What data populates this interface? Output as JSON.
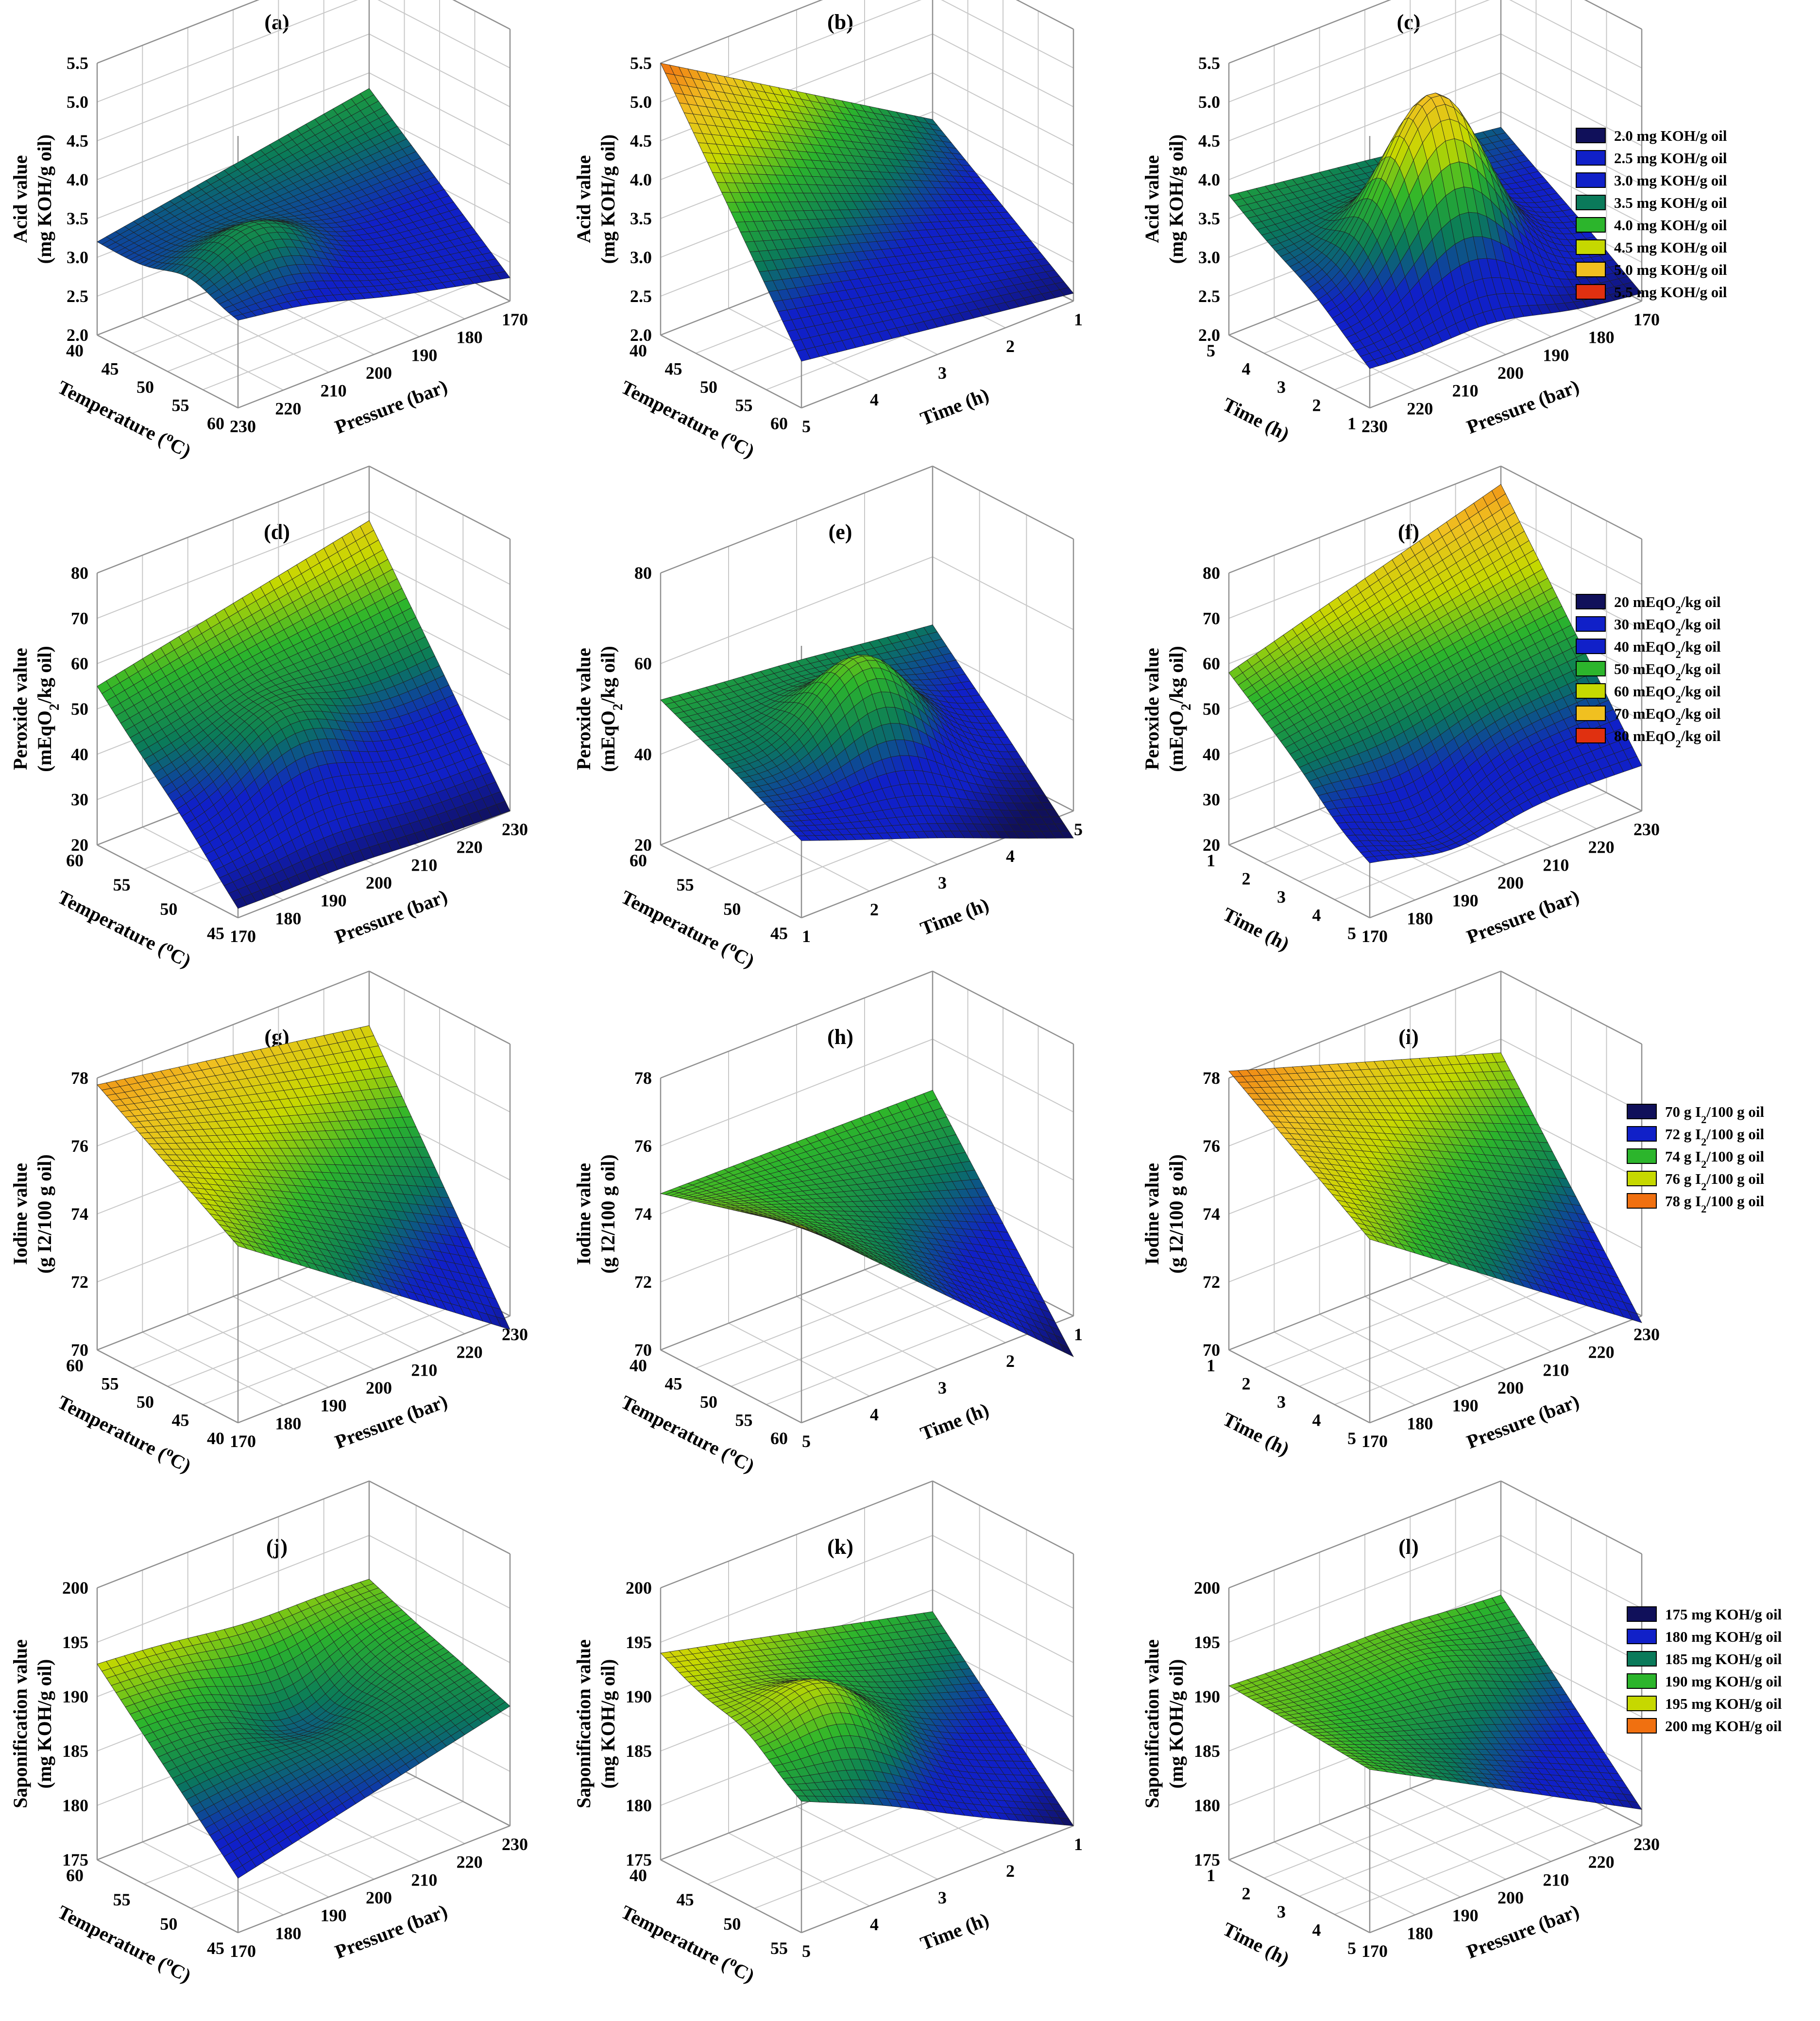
{
  "figure": {
    "colors": {
      "c1": "#10105a",
      "c2": "#1020c8",
      "c3": "#0a7a5a",
      "c4": "#2cb52c",
      "c5": "#c6d800",
      "c6": "#f0c020",
      "c7": "#f07010",
      "c8": "#e03010",
      "line": "#202020",
      "grid": "#c8c8c8",
      "box": "#909090"
    },
    "legends": [
      {
        "id": "acid",
        "items": [
          {
            "text": "2.0 mg KOH/g oil",
            "color": "c1"
          },
          {
            "text": "2.5 mg KOH/g oil",
            "color": "c2"
          },
          {
            "text": "3.0 mg KOH/g oil",
            "color": "c2"
          },
          {
            "text": "3.5 mg KOH/g oil",
            "color": "c3"
          },
          {
            "text": "4.0 mg KOH/g oil",
            "color": "c4"
          },
          {
            "text": "4.5 mg KOH/g oil",
            "color": "c5"
          },
          {
            "text": "5.0 mg KOH/g oil",
            "color": "c6"
          },
          {
            "text": "5.5 mg KOH/g oil",
            "color": "c8"
          }
        ]
      },
      {
        "id": "peroxide",
        "items": [
          {
            "text": "20 mEqO",
            "sub": "2",
            "tail": "/kg oil",
            "color": "c1"
          },
          {
            "text": "30 mEqO",
            "sub": "2",
            "tail": "/kg oil",
            "color": "c2"
          },
          {
            "text": "40 mEqO",
            "sub": "2",
            "tail": "/kg oil",
            "color": "c2"
          },
          {
            "text": "50 mEqO",
            "sub": "2",
            "tail": "/kg oil",
            "color": "c4"
          },
          {
            "text": "60 mEqO",
            "sub": "2",
            "tail": "/kg oil",
            "color": "c5"
          },
          {
            "text": "70 mEqO",
            "sub": "2",
            "tail": "/kg oil",
            "color": "c6"
          },
          {
            "text": "80 mEqO",
            "sub": "2",
            "tail": "/kg oil",
            "color": "c8"
          }
        ]
      },
      {
        "id": "iodine",
        "items": [
          {
            "text": "70 g I",
            "sub": "2",
            "tail": "/100 g oil",
            "color": "c1"
          },
          {
            "text": "72 g I",
            "sub": "2",
            "tail": "/100 g oil",
            "color": "c2"
          },
          {
            "text": "74 g I",
            "sub": "2",
            "tail": "/100 g oil",
            "color": "c4"
          },
          {
            "text": "76 g I",
            "sub": "2",
            "tail": "/100 g oil",
            "color": "c5"
          },
          {
            "text": "78 g I",
            "sub": "2",
            "tail": "/100 g oil",
            "color": "c7"
          }
        ]
      },
      {
        "id": "sap",
        "items": [
          {
            "text": "175 mg KOH/g oil",
            "color": "c1"
          },
          {
            "text": "180 mg KOH/g oil",
            "color": "c2"
          },
          {
            "text": "185 mg KOH/g oil",
            "color": "c3"
          },
          {
            "text": "190 mg KOH/g oil",
            "color": "c4"
          },
          {
            "text": "195 mg KOH/g oil",
            "color": "c5"
          },
          {
            "text": "200 mg KOH/g oil",
            "color": "c7"
          }
        ]
      }
    ]
  },
  "chart_data": [
    {
      "panel": "(a)",
      "type": "surface3d",
      "response": "acid",
      "zlabel": [
        "Acid value",
        "(mg KOH/g oil)"
      ],
      "zticks": [
        "2.0",
        "2.5",
        "3.0",
        "3.5",
        "4.0",
        "4.5",
        "5.0",
        "5.5"
      ],
      "ylabel": "Temperature (°C)",
      "yticks": [
        "60",
        "55",
        "50",
        "45",
        "40"
      ],
      "xlabel": "Pressure (bar)",
      "xticks": [
        "230",
        "220",
        "210",
        "200",
        "190",
        "180",
        "170"
      ],
      "surface": {
        "c00": 3.1,
        "c10": 2.3,
        "c01": 3.2,
        "c11": 3.8,
        "bulge": 0.6,
        "bx": 0.25,
        "by": 0.35
      }
    },
    {
      "panel": "(b)",
      "type": "surface3d",
      "response": "acid",
      "zlabel": [
        "Acid value",
        "(mg KOH/g oil)"
      ],
      "zticks": [
        "2.0",
        "2.5",
        "3.0",
        "3.5",
        "4.0",
        "4.5",
        "5.0",
        "5.5"
      ],
      "ylabel": "Temperature (°C)",
      "yticks": [
        "60",
        "55",
        "50",
        "45",
        "40"
      ],
      "xlabel": "Time (h)",
      "xticks": [
        "5",
        "4",
        "3",
        "2",
        "1"
      ],
      "surface": {
        "c00": 2.6,
        "c10": 2.1,
        "c01": 5.5,
        "c11": 3.4,
        "bulge": 0.0,
        "bx": 0.5,
        "by": 0.5
      }
    },
    {
      "panel": "(c)",
      "type": "surface3d",
      "response": "acid",
      "zlabel": [
        "Acid value",
        "(mg KOH/g oil)"
      ],
      "zticks": [
        "2.0",
        "2.5",
        "3.0",
        "3.5",
        "4.0",
        "4.5",
        "5.0",
        "5.5"
      ],
      "ylabel": "Time (h)",
      "yticks": [
        "1",
        "2",
        "3",
        "4",
        "5"
      ],
      "xlabel": "Pressure (bar)",
      "xticks": [
        "230",
        "220",
        "210",
        "200",
        "190",
        "180",
        "170"
      ],
      "surface": {
        "c00": 2.5,
        "c10": 2.1,
        "c01": 3.8,
        "c11": 3.3,
        "bulge": 2.2,
        "bx": 0.45,
        "by": 0.4
      }
    },
    {
      "panel": "(d)",
      "type": "surface3d",
      "response": "peroxide",
      "zlabel": [
        "Peroxide value",
        "(mEqO2/kg oil)"
      ],
      "zticks": [
        "20",
        "30",
        "40",
        "50",
        "60",
        "70",
        "80"
      ],
      "ylabel": "Temperature (°C)",
      "yticks": [
        "45",
        "50",
        "55",
        "60"
      ],
      "xlabel": "Pressure (bar)",
      "xticks": [
        "170",
        "180",
        "190",
        "200",
        "210",
        "220",
        "230"
      ],
      "surface": {
        "c00": 22,
        "c10": 20,
        "c01": 55,
        "c11": 68,
        "bulge": 10,
        "bx": 0.4,
        "by": 0.4
      }
    },
    {
      "panel": "(e)",
      "type": "surface3d",
      "response": "peroxide",
      "zlabel": [
        "Peroxide value",
        "(mEqO2/kg oil)"
      ],
      "zticks": [
        "20",
        "40",
        "60",
        "80"
      ],
      "ylabel": "Temperature (°C)",
      "yticks": [
        "45",
        "50",
        "55",
        "60"
      ],
      "xlabel": "Time (h)",
      "xticks": [
        "1",
        "2",
        "3",
        "4",
        "5"
      ],
      "surface": {
        "c00": 37,
        "c10": 14,
        "c01": 52,
        "c11": 45,
        "bulge": 20,
        "bx": 0.5,
        "by": 0.5
      }
    },
    {
      "panel": "(f)",
      "type": "surface3d",
      "response": "peroxide",
      "zlabel": [
        "Peroxide value",
        "(mEqO2/kg oil)"
      ],
      "zticks": [
        "20",
        "30",
        "40",
        "50",
        "60",
        "70",
        "80"
      ],
      "ylabel": "Time (h)",
      "yticks": [
        "5",
        "4",
        "3",
        "2",
        "1"
      ],
      "xlabel": "Pressure (bar)",
      "xticks": [
        "170",
        "180",
        "190",
        "200",
        "210",
        "220",
        "230"
      ],
      "surface": {
        "c00": 33,
        "c10": 30,
        "c01": 58,
        "c11": 76,
        "bulge": -8,
        "bx": 0.3,
        "by": 0.2
      }
    },
    {
      "panel": "(g)",
      "type": "surface3d",
      "response": "iodine",
      "zlabel": [
        "Iodine value",
        "(g I2/100 g oil)"
      ],
      "zticks": [
        "70",
        "72",
        "74",
        "76",
        "78"
      ],
      "ylabel": "Temperature (°C)",
      "yticks": [
        "40",
        "45",
        "50",
        "55",
        "60"
      ],
      "xlabel": "Pressure (bar)",
      "xticks": [
        "170",
        "180",
        "190",
        "200",
        "210",
        "220",
        "230"
      ],
      "surface": {
        "c00": 75.2,
        "c10": 69.6,
        "c01": 77.8,
        "c11": 76.4,
        "bulge": 0.0,
        "bx": 0.5,
        "by": 0.5
      }
    },
    {
      "panel": "(h)",
      "type": "surface3d",
      "response": "iodine",
      "zlabel": [
        "Iodine value",
        "(g I2/100 g oil)"
      ],
      "zticks": [
        "70",
        "72",
        "74",
        "76",
        "78"
      ],
      "ylabel": "Temperature (°C)",
      "yticks": [
        "60",
        "55",
        "50",
        "45",
        "40"
      ],
      "xlabel": "Time (h)",
      "xticks": [
        "5",
        "4",
        "3",
        "2",
        "1"
      ],
      "surface": {
        "c00": 75.8,
        "c10": 68.8,
        "c01": 74.6,
        "c11": 74.5,
        "bulge": 0.0,
        "bx": 0.5,
        "by": 0.5
      }
    },
    {
      "panel": "(i)",
      "type": "surface3d",
      "response": "iodine",
      "zlabel": [
        "Iodine value",
        "(g I2/100 g oil)"
      ],
      "zticks": [
        "70",
        "72",
        "74",
        "76",
        "78"
      ],
      "ylabel": "Time (h)",
      "yticks": [
        "5",
        "4",
        "3",
        "2",
        "1"
      ],
      "xlabel": "Pressure (bar)",
      "xticks": [
        "170",
        "180",
        "190",
        "200",
        "210",
        "220",
        "230"
      ],
      "surface": {
        "c00": 75.4,
        "c10": 69.8,
        "c01": 78.2,
        "c11": 75.6,
        "bulge": 0.0,
        "bx": 0.5,
        "by": 0.5
      }
    },
    {
      "panel": "(j)",
      "type": "surface3d",
      "response": "sap",
      "zlabel": [
        "Saponification value",
        "(mg KOH/g oil)"
      ],
      "zticks": [
        "175",
        "180",
        "185",
        "190",
        "195",
        "200"
      ],
      "ylabel": "Temperature (°C)",
      "yticks": [
        "45",
        "50",
        "55",
        "60"
      ],
      "xlabel": "Pressure (bar)",
      "xticks": [
        "170",
        "180",
        "190",
        "200",
        "210",
        "220",
        "230"
      ],
      "surface": {
        "c00": 180,
        "c10": 186,
        "c01": 193,
        "c11": 191,
        "bulge": -4,
        "bx": 0.55,
        "by": 0.65
      }
    },
    {
      "panel": "(k)",
      "type": "surface3d",
      "response": "sap",
      "zlabel": [
        "Saponification value",
        "(mg KOH/g oil)"
      ],
      "zticks": [
        "175",
        "180",
        "185",
        "190",
        "195",
        "200"
      ],
      "ylabel": "Temperature (°C)",
      "yticks": [
        "55",
        "50",
        "45",
        "40"
      ],
      "xlabel": "Time (h)",
      "xticks": [
        "5",
        "4",
        "3",
        "2",
        "1"
      ],
      "surface": {
        "c00": 187,
        "c10": 175,
        "c01": 194,
        "c11": 188,
        "bulge": 5,
        "bx": 0.3,
        "by": 0.4
      }
    },
    {
      "panel": "(l)",
      "type": "surface3d",
      "response": "sap",
      "zlabel": [
        "Saponification value",
        "(mg KOH/g oil)"
      ],
      "zticks": [
        "175",
        "180",
        "185",
        "190",
        "195",
        "200"
      ],
      "ylabel": "Time (h)",
      "yticks": [
        "5",
        "4",
        "3",
        "2",
        "1"
      ],
      "xlabel": "Pressure (bar)",
      "xticks": [
        "170",
        "180",
        "190",
        "200",
        "210",
        "220",
        "230"
      ],
      "surface": {
        "c00": 190,
        "c10": 176.5,
        "c01": 191,
        "c11": 189.5,
        "bulge": 1.5,
        "bx": 0.6,
        "by": 0.7
      }
    }
  ]
}
